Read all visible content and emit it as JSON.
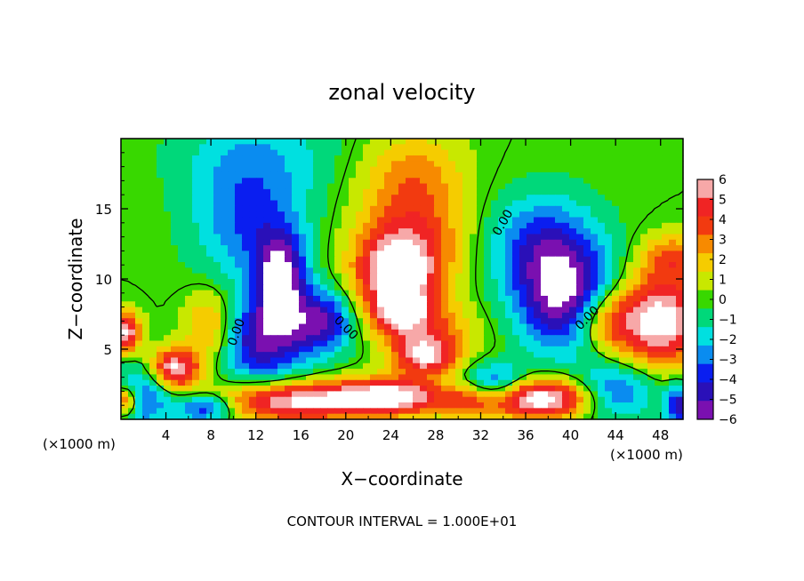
{
  "chart_data": {
    "type": "heatmap",
    "title": "zonal velocity",
    "xlabel": "X−coordinate",
    "ylabel": "Z−coordinate",
    "x_unit_label": "(×1000 m)",
    "z_unit_label": "(×1000 m)",
    "footer": "CONTOUR INTERVAL = 1.000E+01",
    "contour_label": "0.00",
    "xlim": [
      0,
      50
    ],
    "zlim": [
      0,
      20
    ],
    "x_ticks": [
      4,
      8,
      12,
      16,
      20,
      24,
      28,
      32,
      36,
      40,
      44,
      48
    ],
    "x_tick_labels": [
      "4",
      "8",
      "12",
      "16",
      "20",
      "24",
      "28",
      "32",
      "36",
      "40",
      "44",
      "48"
    ],
    "z_ticks": [
      5,
      10,
      15
    ],
    "z_tick_labels": [
      "5",
      "10",
      "15"
    ],
    "colorbar": {
      "levels": [
        6,
        5,
        4,
        3,
        2,
        1,
        0,
        -1,
        -2,
        -3,
        -4,
        -5,
        -6
      ],
      "labels": [
        "6",
        "5",
        "4",
        "3",
        "2",
        "1",
        "0",
        "−1",
        "−2",
        "−3",
        "−4",
        "−5",
        "−6"
      ],
      "colors": [
        "#f7a8a8",
        "#f02424",
        "#f23a10",
        "#f78a00",
        "#f5cc00",
        "#c8e800",
        "#38d800",
        "#00d87a",
        "#00e0e0",
        "#0a8cf0",
        "#0a1ef0",
        "#2a10b8",
        "#7a10b0"
      ]
    },
    "features": [
      {
        "kind": "positive",
        "x": 24.5,
        "z": 10.5,
        "amplitude": 6.5,
        "sx": 2.5,
        "sz": 1.8
      },
      {
        "kind": "positive",
        "x": 25,
        "z": 7.5,
        "amplitude": 6,
        "sx": 2.2,
        "sz": 1.3
      },
      {
        "kind": "positive",
        "x": 27,
        "z": 4.5,
        "amplitude": 6,
        "sx": 2,
        "sz": 1
      },
      {
        "kind": "positive",
        "x": 26,
        "z": 13.5,
        "amplitude": 4,
        "sx": 3.5,
        "sz": 3
      },
      {
        "kind": "positive",
        "x": 26,
        "z": 18,
        "amplitude": 1.8,
        "sx": 3,
        "sz": 2
      },
      {
        "kind": "positive",
        "x": 24,
        "z": 1.6,
        "amplitude": 7.5,
        "sx": 3.5,
        "sz": 0.9
      },
      {
        "kind": "positive",
        "x": 4.8,
        "z": 3.6,
        "amplitude": 7,
        "sx": 1.5,
        "sz": 1
      },
      {
        "kind": "positive",
        "x": 0.3,
        "z": 6.2,
        "amplitude": 7,
        "sx": 1,
        "sz": 1
      },
      {
        "kind": "positive",
        "x": 8,
        "z": 6.5,
        "amplitude": 4,
        "sx": 1.6,
        "sz": 1.8
      },
      {
        "kind": "positive",
        "x": 0.4,
        "z": 1.3,
        "amplitude": 6.5,
        "sx": 0.9,
        "sz": 0.8
      },
      {
        "kind": "positive",
        "x": 15,
        "z": 1.3,
        "amplitude": 7,
        "sx": 4.5,
        "sz": 1
      },
      {
        "kind": "positive",
        "x": 48,
        "z": 7,
        "amplitude": 7.5,
        "sx": 2.8,
        "sz": 2.2
      },
      {
        "kind": "positive",
        "x": 43,
        "z": 7,
        "amplitude": 4,
        "sx": 2,
        "sz": 1.5
      },
      {
        "kind": "positive",
        "x": 49,
        "z": 11.5,
        "amplitude": 3.5,
        "sx": 2,
        "sz": 1.2
      },
      {
        "kind": "positive",
        "x": 37,
        "z": 1.5,
        "amplitude": 8,
        "sx": 3.5,
        "sz": 1
      },
      {
        "kind": "positive",
        "x": 31,
        "z": 1.5,
        "amplitude": 3,
        "sx": 1.5,
        "sz": 1
      },
      {
        "kind": "positive",
        "x": 29,
        "z": 6,
        "amplitude": 2,
        "sx": 2.5,
        "sz": 1.5
      },
      {
        "kind": "negative",
        "x": 14.2,
        "z": 10,
        "amplitude": 6.5,
        "sx": 1.6,
        "sz": 2.2
      },
      {
        "kind": "negative",
        "x": 12.5,
        "z": 5.5,
        "amplitude": 5.5,
        "sx": 3,
        "sz": 2.2
      },
      {
        "kind": "negative",
        "x": 18,
        "z": 7,
        "amplitude": 5,
        "sx": 2,
        "sz": 1.5
      },
      {
        "kind": "negative",
        "x": 11.5,
        "z": 14,
        "amplitude": 3.5,
        "sx": 3.5,
        "sz": 3
      },
      {
        "kind": "negative",
        "x": 39.5,
        "z": 8.5,
        "amplitude": 6.5,
        "sx": 3,
        "sz": 2.6
      },
      {
        "kind": "negative",
        "x": 37.5,
        "z": 12.5,
        "amplitude": 4,
        "sx": 3.5,
        "sz": 2.5
      },
      {
        "kind": "negative",
        "x": 33,
        "z": 2.5,
        "amplitude": 5,
        "sx": 2.2,
        "sz": 1
      },
      {
        "kind": "negative",
        "x": 1.5,
        "z": 1.5,
        "amplitude": 4.5,
        "sx": 2,
        "sz": 1.5
      },
      {
        "kind": "negative",
        "x": 7.5,
        "z": 0.8,
        "amplitude": 5,
        "sx": 1.8,
        "sz": 0.7
      },
      {
        "kind": "negative",
        "x": 44,
        "z": 2,
        "amplitude": 4,
        "sx": 2.5,
        "sz": 1.4
      },
      {
        "kind": "negative",
        "x": 49.5,
        "z": 1,
        "amplitude": 5,
        "sx": 0.8,
        "sz": 1
      },
      {
        "kind": "negative",
        "x": 12,
        "z": 19,
        "amplitude": 2,
        "sx": 5,
        "sz": 2.5
      }
    ]
  }
}
